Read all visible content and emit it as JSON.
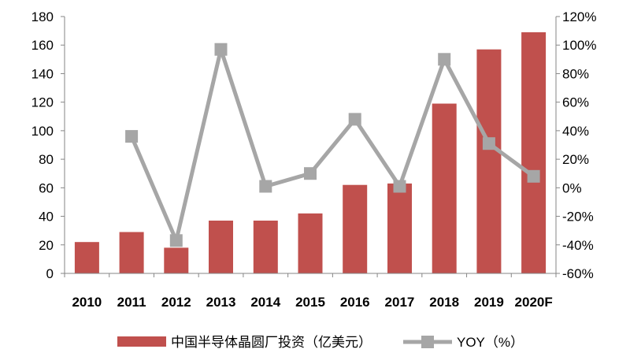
{
  "chart_data": {
    "type": "bar",
    "title": "",
    "categories": [
      "2010",
      "2011",
      "2012",
      "2013",
      "2014",
      "2015",
      "2016",
      "2017",
      "2018",
      "2019",
      "2020F"
    ],
    "series": [
      {
        "name": "中国半导体晶圆厂投资（亿美元）",
        "type": "bar",
        "axis": "left",
        "color": "#C0504D",
        "values": [
          22,
          29,
          18,
          37,
          37,
          42,
          62,
          63,
          119,
          157,
          169
        ]
      },
      {
        "name": "YOY（%）",
        "type": "line",
        "axis": "right",
        "color": "#A6A6A6",
        "values": [
          null,
          36,
          -37,
          97,
          1,
          10,
          48,
          1,
          90,
          31,
          8
        ]
      }
    ],
    "y_left": {
      "min": 0,
      "max": 180,
      "ticks": [
        0,
        20,
        40,
        60,
        80,
        100,
        120,
        140,
        160,
        180
      ],
      "tick_labels": [
        "0",
        "20",
        "40",
        "60",
        "80",
        "100",
        "120",
        "140",
        "160",
        "180"
      ]
    },
    "y_right": {
      "min": -60,
      "max": 120,
      "ticks": [
        -60,
        -40,
        -20,
        0,
        20,
        40,
        60,
        80,
        100,
        120
      ],
      "tick_labels": [
        "-60%",
        "-40%",
        "-20%",
        "0%",
        "20%",
        "40%",
        "60%",
        "80%",
        "100%",
        "120%"
      ]
    },
    "grid": false,
    "legend_position": "bottom"
  }
}
